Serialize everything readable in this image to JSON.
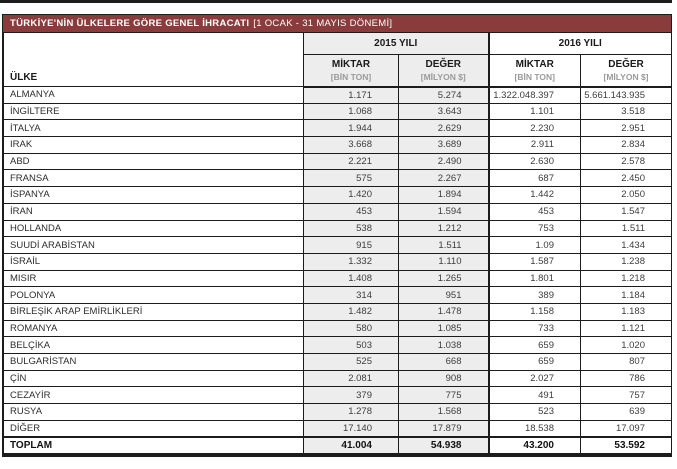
{
  "title_bar": {
    "title": "TÜRKİYE'NİN ÜLKELERE GÖRE GENEL İHRACATI",
    "period": "[1 OCAK - 31 MAYIS DÖNEMİ]"
  },
  "colors": {
    "accent_maroon": "#8a3c3c",
    "shaded_column_bg": "#ededed",
    "border": "#1c1c1c",
    "unit_text_gray": "#9b9b9b"
  },
  "table": {
    "country_header": "ÜLKE",
    "year_groups": [
      {
        "label": "2015 YILI",
        "columns": [
          {
            "label": "MİKTAR",
            "unit": "[BİN TON]"
          },
          {
            "label": "DEĞER",
            "unit": "[MİLYON $]"
          }
        ]
      },
      {
        "label": "2016 YILI",
        "columns": [
          {
            "label": "MİKTAR",
            "unit": "[BİN TON]"
          },
          {
            "label": "DEĞER",
            "unit": "[MİLYON $]"
          }
        ]
      }
    ],
    "rows": [
      {
        "country": "ALMANYA",
        "values": [
          "1.171",
          "5.274",
          "1.322.048.397",
          "5.661.143.935"
        ]
      },
      {
        "country": "İNGİLTERE",
        "values": [
          "1.068",
          "3.643",
          "1.101",
          "3.518"
        ]
      },
      {
        "country": "İTALYA",
        "values": [
          "1.944",
          "2.629",
          "2.230",
          "2.951"
        ]
      },
      {
        "country": "IRAK",
        "values": [
          "3.668",
          "3.689",
          "2.911",
          "2.834"
        ]
      },
      {
        "country": "ABD",
        "values": [
          "2.221",
          "2.490",
          "2.630",
          "2.578"
        ]
      },
      {
        "country": "FRANSA",
        "values": [
          "575",
          "2.267",
          "687",
          "2.450"
        ]
      },
      {
        "country": "İSPANYA",
        "values": [
          "1.420",
          "1.894",
          "1.442",
          "2.050"
        ]
      },
      {
        "country": "İRAN",
        "values": [
          "453",
          "1.594",
          "453",
          "1.547"
        ]
      },
      {
        "country": "HOLLANDA",
        "values": [
          "538",
          "1.212",
          "753",
          "1.511"
        ]
      },
      {
        "country": "SUUDİ ARABİSTAN",
        "values": [
          "915",
          "1.511",
          "1.09",
          "1.434"
        ]
      },
      {
        "country": "İSRAİL",
        "values": [
          "1.332",
          "1.110",
          "1.587",
          "1.238"
        ]
      },
      {
        "country": "MISIR",
        "values": [
          "1.408",
          "1.265",
          "1.801",
          "1.218"
        ]
      },
      {
        "country": "POLONYA",
        "values": [
          "314",
          "951",
          "389",
          "1.184"
        ]
      },
      {
        "country": "BİRLEŞİK ARAP EMİRLİKLERİ",
        "values": [
          "1.482",
          "1.478",
          "1.158",
          "1.183"
        ]
      },
      {
        "country": "ROMANYA",
        "values": [
          "580",
          "1.085",
          "733",
          "1.121"
        ]
      },
      {
        "country": "BELÇİKA",
        "values": [
          "503",
          "1.038",
          "659",
          "1.020"
        ]
      },
      {
        "country": "BULGARİSTAN",
        "values": [
          "525",
          "668",
          "659",
          "807"
        ]
      },
      {
        "country": "ÇİN",
        "values": [
          "2.081",
          "908",
          "2.027",
          "786"
        ]
      },
      {
        "country": "CEZAYİR",
        "values": [
          "379",
          "775",
          "491",
          "757"
        ]
      },
      {
        "country": "RUSYA",
        "values": [
          "1.278",
          "1.568",
          "523",
          "639"
        ]
      },
      {
        "country": "DİĞER",
        "values": [
          "17.140",
          "17.879",
          "18.538",
          "17.097"
        ]
      }
    ],
    "total_row": {
      "label": "TOPLAM",
      "values": [
        "41.004",
        "54.938",
        "43.200",
        "53.592"
      ]
    }
  }
}
